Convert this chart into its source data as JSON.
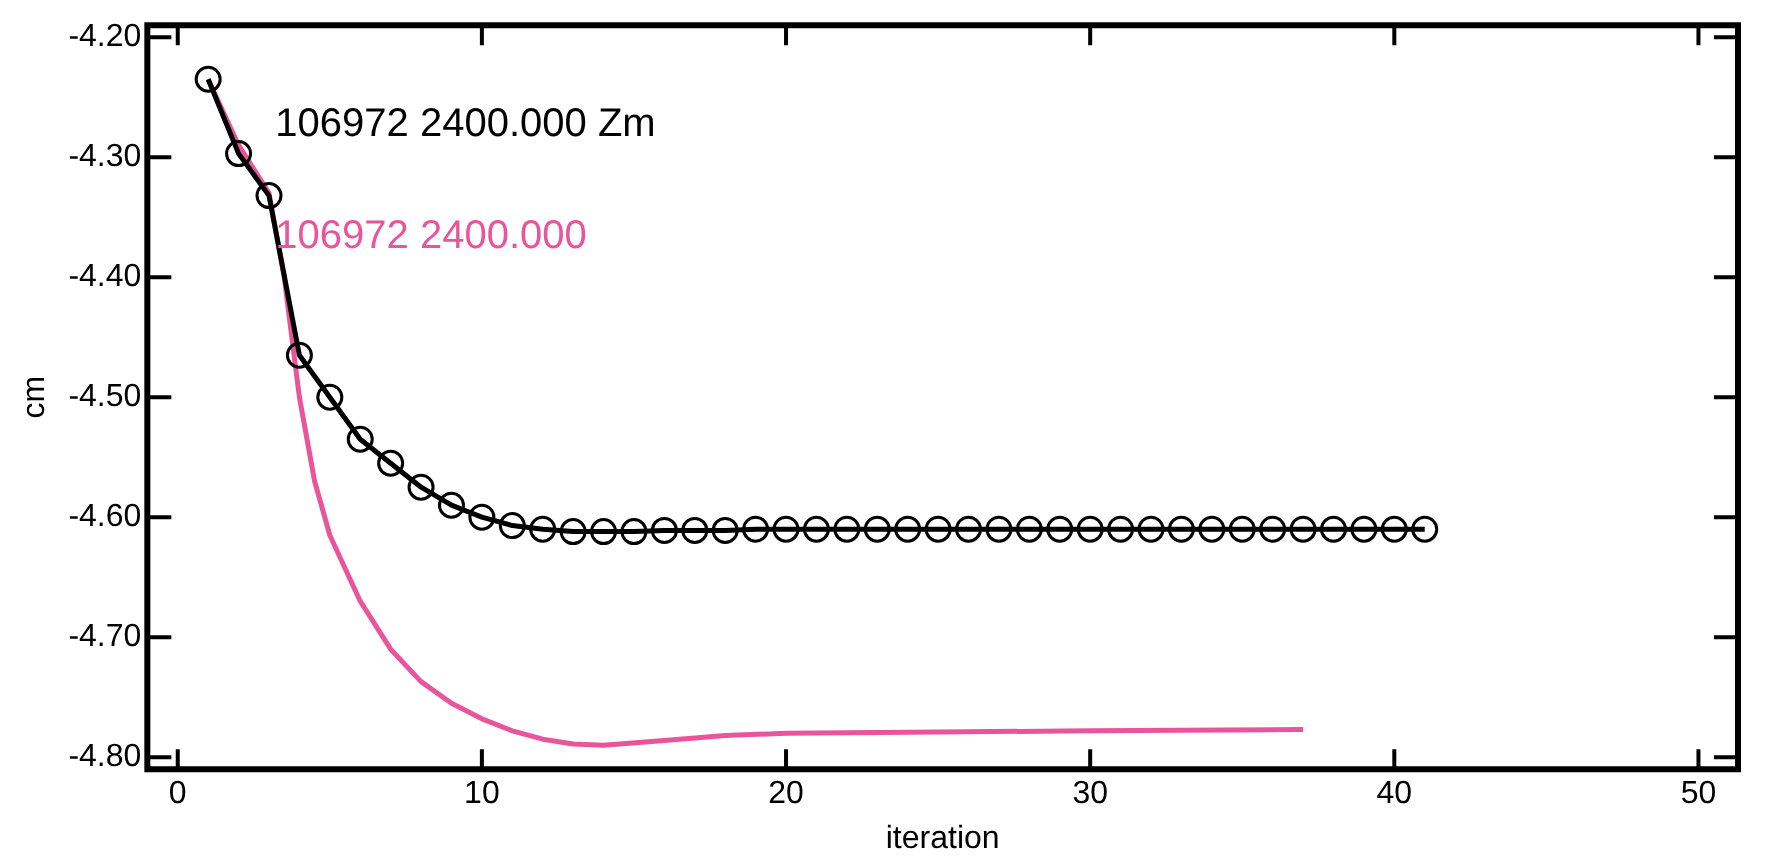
{
  "chart_data": {
    "type": "line",
    "xlabel": "iteration",
    "ylabel": "cm",
    "xlim": [
      -1,
      51.3
    ],
    "ylim": [
      -4.81,
      -4.19
    ],
    "xticks": [
      0,
      10,
      20,
      30,
      40,
      50
    ],
    "yticks": [
      {
        "value": -4.8,
        "label": "-4.80"
      },
      {
        "value": -4.7,
        "label": "-4.70"
      },
      {
        "value": -4.6,
        "label": "-4.60"
      },
      {
        "value": -4.5,
        "label": "-4.50"
      },
      {
        "value": -4.4,
        "label": "-4.40"
      },
      {
        "value": -4.3,
        "label": "-4.30"
      },
      {
        "value": -4.2,
        "label": "-4.20"
      }
    ],
    "grid": false,
    "legend": false,
    "line_style": "solid",
    "series": [
      {
        "name": "106972 2400.000 Zm",
        "color": "#000000",
        "marker": "circle",
        "x": [
          1,
          2,
          3,
          4,
          5,
          6,
          7,
          8,
          9,
          10,
          11,
          12,
          13,
          14,
          15,
          16,
          17,
          18,
          19,
          20,
          21,
          22,
          23,
          24,
          25,
          26,
          27,
          28,
          29,
          30,
          31,
          32,
          33,
          34,
          35,
          36,
          37,
          38,
          39,
          40,
          41
        ],
        "values": [
          -4.235,
          -4.297,
          -4.332,
          -4.465,
          -4.5,
          -4.535,
          -4.555,
          -4.575,
          -4.59,
          -4.6,
          -4.607,
          -4.61,
          -4.612,
          -4.612,
          -4.612,
          -4.611,
          -4.611,
          -4.611,
          -4.61,
          -4.61,
          -4.61,
          -4.61,
          -4.61,
          -4.61,
          -4.61,
          -4.61,
          -4.61,
          -4.61,
          -4.61,
          -4.61,
          -4.61,
          -4.61,
          -4.61,
          -4.61,
          -4.61,
          -4.61,
          -4.61,
          -4.61,
          -4.61,
          -4.61,
          -4.61
        ]
      },
      {
        "name": "106972 2400.000",
        "color": "#e8559b",
        "marker": "none",
        "x": [
          1,
          2,
          3,
          3.5,
          4,
          4.5,
          5,
          6,
          7,
          8,
          9,
          10,
          11,
          12,
          13,
          14,
          16,
          18,
          20,
          25,
          30,
          37
        ],
        "values": [
          -4.235,
          -4.29,
          -4.33,
          -4.4,
          -4.5,
          -4.57,
          -4.615,
          -4.67,
          -4.71,
          -4.737,
          -4.755,
          -4.768,
          -4.778,
          -4.785,
          -4.789,
          -4.79,
          -4.786,
          -4.782,
          -4.78,
          -4.779,
          -4.778,
          -4.777
        ]
      }
    ]
  }
}
